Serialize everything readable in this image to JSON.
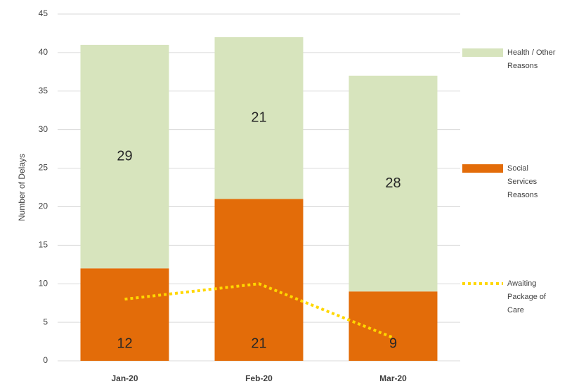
{
  "chart_data": {
    "type": "bar",
    "stacked": true,
    "ylabel": "Number of Delays",
    "categories": [
      "Jan-20",
      "Feb-20",
      "Mar-20"
    ],
    "series": [
      {
        "name": "Social Services Reasons",
        "color": "#e36c09",
        "values": [
          12,
          21,
          9
        ]
      },
      {
        "name": "Health / Other Reasons",
        "color": "#d7e4bd",
        "values": [
          29,
          21,
          28
        ]
      },
      {
        "name": "Awaiting Package of Care",
        "color": "#ffd700",
        "type": "line",
        "values": [
          8,
          10,
          3
        ]
      }
    ],
    "ylim": [
      0,
      45
    ],
    "yticks": [
      0,
      5,
      10,
      15,
      20,
      25,
      30,
      35,
      40,
      45
    ],
    "grid": true,
    "legend": "right"
  }
}
